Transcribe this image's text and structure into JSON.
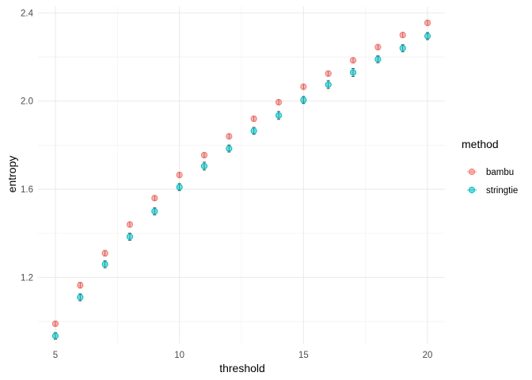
{
  "chart_data": {
    "type": "scatter",
    "xlabel": "threshold",
    "ylabel": "entropy",
    "xlim": [
      4.3,
      20.7
    ],
    "ylim": [
      0.9,
      2.43
    ],
    "x_ticks": [
      5,
      10,
      15,
      20
    ],
    "y_ticks": [
      1.2,
      1.6,
      2.0,
      2.4
    ],
    "x_tick_labels": [
      "5",
      "10",
      "15",
      "20"
    ],
    "y_tick_labels": [
      "1.2",
      "1.6",
      "2.0",
      "2.4"
    ],
    "grid": true,
    "error_bars": true,
    "legend": {
      "title": "method",
      "position": "right"
    },
    "series": [
      {
        "name": "bambu",
        "color": "#F8766D",
        "x": [
          5,
          6,
          7,
          8,
          9,
          10,
          11,
          12,
          13,
          14,
          15,
          16,
          17,
          18,
          19,
          20
        ],
        "y": [
          0.99,
          1.165,
          1.31,
          1.44,
          1.56,
          1.665,
          1.755,
          1.84,
          1.92,
          1.995,
          2.065,
          2.125,
          2.185,
          2.245,
          2.3,
          2.355
        ],
        "err": [
          0.012,
          0.013,
          0.013,
          0.012,
          0.012,
          0.012,
          0.012,
          0.012,
          0.012,
          0.012,
          0.012,
          0.012,
          0.012,
          0.012,
          0.012,
          0.012
        ]
      },
      {
        "name": "stringtie",
        "color": "#00BFC4",
        "x": [
          5,
          6,
          7,
          8,
          9,
          10,
          11,
          12,
          13,
          14,
          15,
          16,
          17,
          18,
          19,
          20
        ],
        "y": [
          0.935,
          1.11,
          1.26,
          1.385,
          1.5,
          1.61,
          1.705,
          1.785,
          1.865,
          1.935,
          2.005,
          2.075,
          2.13,
          2.19,
          2.24,
          2.295
        ],
        "err": [
          0.015,
          0.016,
          0.016,
          0.016,
          0.016,
          0.016,
          0.018,
          0.016,
          0.016,
          0.018,
          0.016,
          0.018,
          0.018,
          0.016,
          0.016,
          0.016
        ]
      }
    ]
  }
}
